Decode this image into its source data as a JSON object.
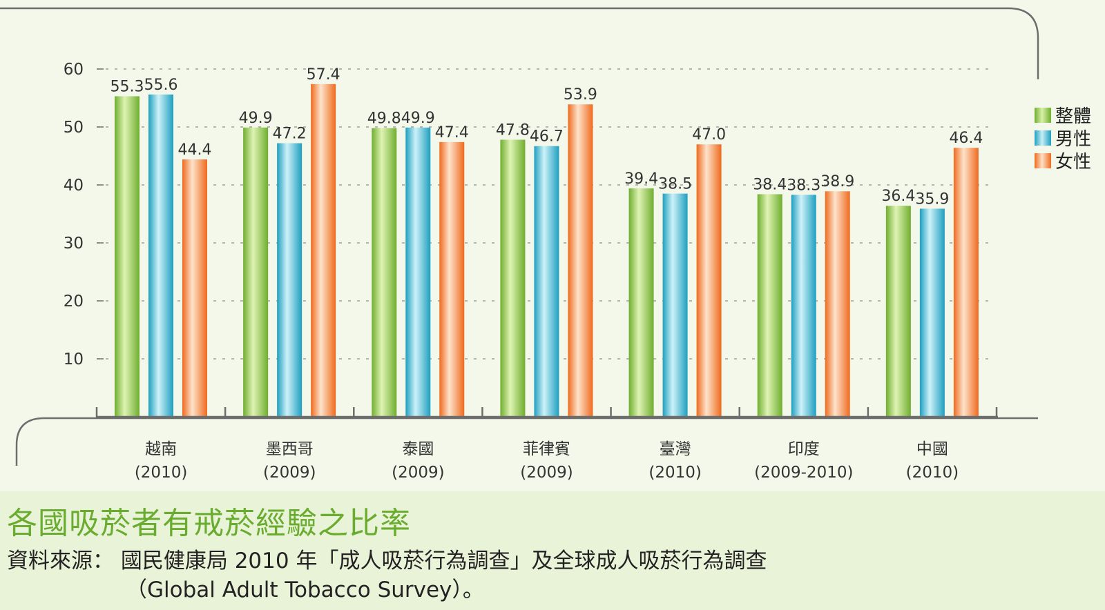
{
  "chart_data": {
    "type": "bar",
    "title": "各國吸菸者有戒菸經驗之比率",
    "categories": [
      {
        "name": "越南",
        "year": "(2010)"
      },
      {
        "name": "墨西哥",
        "year": "(2009)"
      },
      {
        "name": "泰國",
        "year": "(2009)"
      },
      {
        "name": "菲律賓",
        "year": "(2009)"
      },
      {
        "name": "臺灣",
        "year": "(2010)"
      },
      {
        "name": "印度",
        "year": "(2009-2010)"
      },
      {
        "name": "中國",
        "year": "(2010)"
      }
    ],
    "series": [
      {
        "name": "整體",
        "color": "#8dc64f",
        "values": [
          55.3,
          49.9,
          49.8,
          47.8,
          39.4,
          38.4,
          36.4
        ]
      },
      {
        "name": "男性",
        "color": "#3fb6cf",
        "values": [
          55.6,
          47.2,
          49.9,
          46.7,
          38.5,
          38.3,
          35.9
        ]
      },
      {
        "name": "女性",
        "color": "#f27c3b",
        "values": [
          44.4,
          57.4,
          47.4,
          53.9,
          47.0,
          38.9,
          46.4
        ]
      }
    ],
    "value_labels": [
      [
        "55.3",
        "49.9",
        "49.8",
        "47.8",
        "39.4",
        "38.4",
        "36.4"
      ],
      [
        "55.6",
        "47.2",
        "49.9",
        "46.7",
        "38.5",
        "38.3",
        "35.9"
      ],
      [
        "44.4",
        "57.4",
        "47.4",
        "53.9",
        "47.0",
        "38.9",
        "46.4"
      ]
    ],
    "y_ticks": [
      10,
      20,
      30,
      40,
      50,
      60
    ],
    "ylim": [
      0,
      60
    ],
    "grid": "dashed horizontal",
    "legend_position": "right"
  },
  "footer": {
    "title": "各國吸菸者有戒菸經驗之比率",
    "source_line1": "資料來源： 國民健康局 2010 年「成人吸菸行為調查」及全球成人吸菸行為調查",
    "source_line2": "（Global Adult Tobacco Survey）。"
  }
}
